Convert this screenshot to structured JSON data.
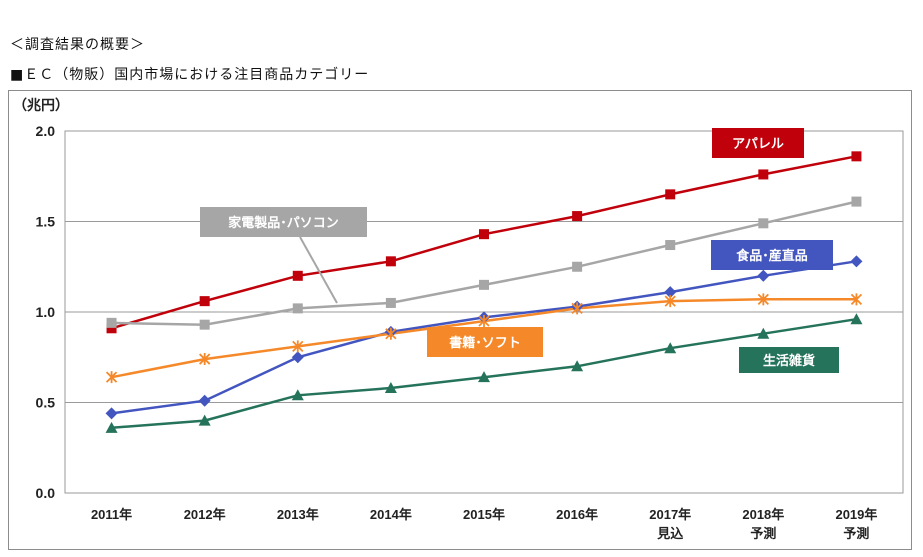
{
  "page": {
    "heading": "＜調査結果の概要＞",
    "subheading": "■ＥＣ（物販）国内市場における注目商品カテゴリー"
  },
  "chart_data": {
    "type": "line",
    "unit_label": "（兆円）",
    "categories": [
      [
        "2011年"
      ],
      [
        "2012年"
      ],
      [
        "2013年"
      ],
      [
        "2014年"
      ],
      [
        "2015年"
      ],
      [
        "2016年"
      ],
      [
        "2017年",
        "見込"
      ],
      [
        "2018年",
        "予測"
      ],
      [
        "2019年",
        "予測"
      ]
    ],
    "ylim": [
      0,
      2.0
    ],
    "yticks": [
      "0.0",
      "0.5",
      "1.0",
      "1.5",
      "2.0"
    ],
    "grid": true,
    "series": [
      {
        "name": "アパレル",
        "color": "#c0000a",
        "marker": "square",
        "values": [
          0.91,
          1.06,
          1.2,
          1.28,
          1.43,
          1.53,
          1.65,
          1.76,
          1.86
        ]
      },
      {
        "name": "家電製品･パソコン",
        "color": "#a6a6a6",
        "marker": "square",
        "values": [
          0.94,
          0.93,
          1.02,
          1.05,
          1.15,
          1.25,
          1.37,
          1.49,
          1.61
        ]
      },
      {
        "name": "食品･産直品",
        "color": "#4356c0",
        "marker": "diamond",
        "values": [
          0.44,
          0.51,
          0.75,
          0.89,
          0.97,
          1.03,
          1.11,
          1.2,
          1.28
        ]
      },
      {
        "name": "書籍･ソフト",
        "color": "#f5892a",
        "marker": "star",
        "values": [
          0.64,
          0.74,
          0.81,
          0.88,
          0.95,
          1.02,
          1.06,
          1.07,
          1.07
        ]
      },
      {
        "name": "生活雑貨",
        "color": "#24735a",
        "marker": "triangle",
        "values": [
          0.36,
          0.4,
          0.54,
          0.58,
          0.64,
          0.7,
          0.8,
          0.88,
          0.96
        ]
      }
    ]
  }
}
